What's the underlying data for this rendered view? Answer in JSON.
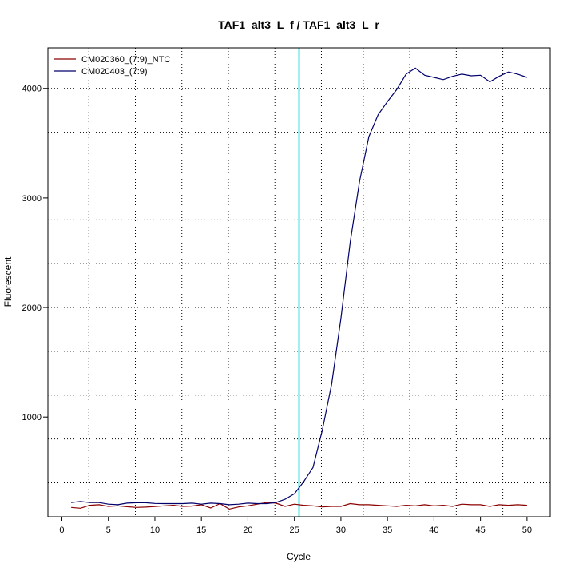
{
  "chart_data": {
    "type": "line",
    "title": "TAF1_alt3_L_f / TAF1_alt3_L_r",
    "xlabel": "Cycle",
    "ylabel": "Fluorescent",
    "xlim": [
      -1.5,
      52.5
    ],
    "ylim": [
      90,
      4370
    ],
    "x_ticks": [
      0,
      5,
      10,
      15,
      20,
      25,
      30,
      35,
      40,
      45,
      50
    ],
    "y_ticks": [
      1000,
      2000,
      3000,
      4000
    ],
    "grid": true,
    "grid_x": [
      2.9,
      7.9,
      12.9,
      17.9,
      22.9,
      27.9,
      32.4,
      37.4,
      42.4,
      47.4
    ],
    "grid_y": [
      400,
      800,
      1200,
      1600,
      2000,
      2400,
      2800,
      3200,
      3600,
      4000
    ],
    "threshold_line": {
      "x": 25.5,
      "color": "#40e0e0"
    },
    "legend_position": "top-left",
    "x": [
      1,
      2,
      3,
      4,
      5,
      6,
      7,
      8,
      9,
      10,
      11,
      12,
      13,
      14,
      15,
      16,
      17,
      18,
      19,
      20,
      21,
      22,
      23,
      24,
      25,
      26,
      27,
      28,
      29,
      30,
      31,
      32,
      33,
      34,
      35,
      36,
      37,
      38,
      39,
      40,
      41,
      42,
      43,
      44,
      45,
      46,
      47,
      48,
      49,
      50
    ],
    "series": [
      {
        "name": "CM020360_(7:9)_NTC",
        "color": "#8b0000",
        "values": [
          175,
          168,
          195,
          200,
          185,
          190,
          182,
          175,
          178,
          183,
          190,
          195,
          185,
          188,
          200,
          170,
          210,
          160,
          180,
          190,
          205,
          220,
          215,
          185,
          205,
          195,
          190,
          180,
          185,
          185,
          210,
          200,
          200,
          195,
          190,
          185,
          195,
          190,
          200,
          190,
          195,
          185,
          205,
          200,
          200,
          185,
          200,
          195,
          200,
          195
        ]
      },
      {
        "name": "CM020403_(7:9)",
        "color": "#00006b",
        "values": [
          220,
          230,
          220,
          220,
          205,
          200,
          215,
          218,
          218,
          212,
          210,
          210,
          210,
          215,
          205,
          215,
          210,
          200,
          205,
          215,
          210,
          210,
          220,
          250,
          300,
          410,
          540,
          880,
          1300,
          1900,
          2600,
          3150,
          3560,
          3760,
          3880,
          3990,
          4130,
          4185,
          4120,
          4100,
          4080,
          4110,
          4130,
          4115,
          4120,
          4060,
          4110,
          4150,
          4130,
          4100
        ]
      }
    ]
  }
}
